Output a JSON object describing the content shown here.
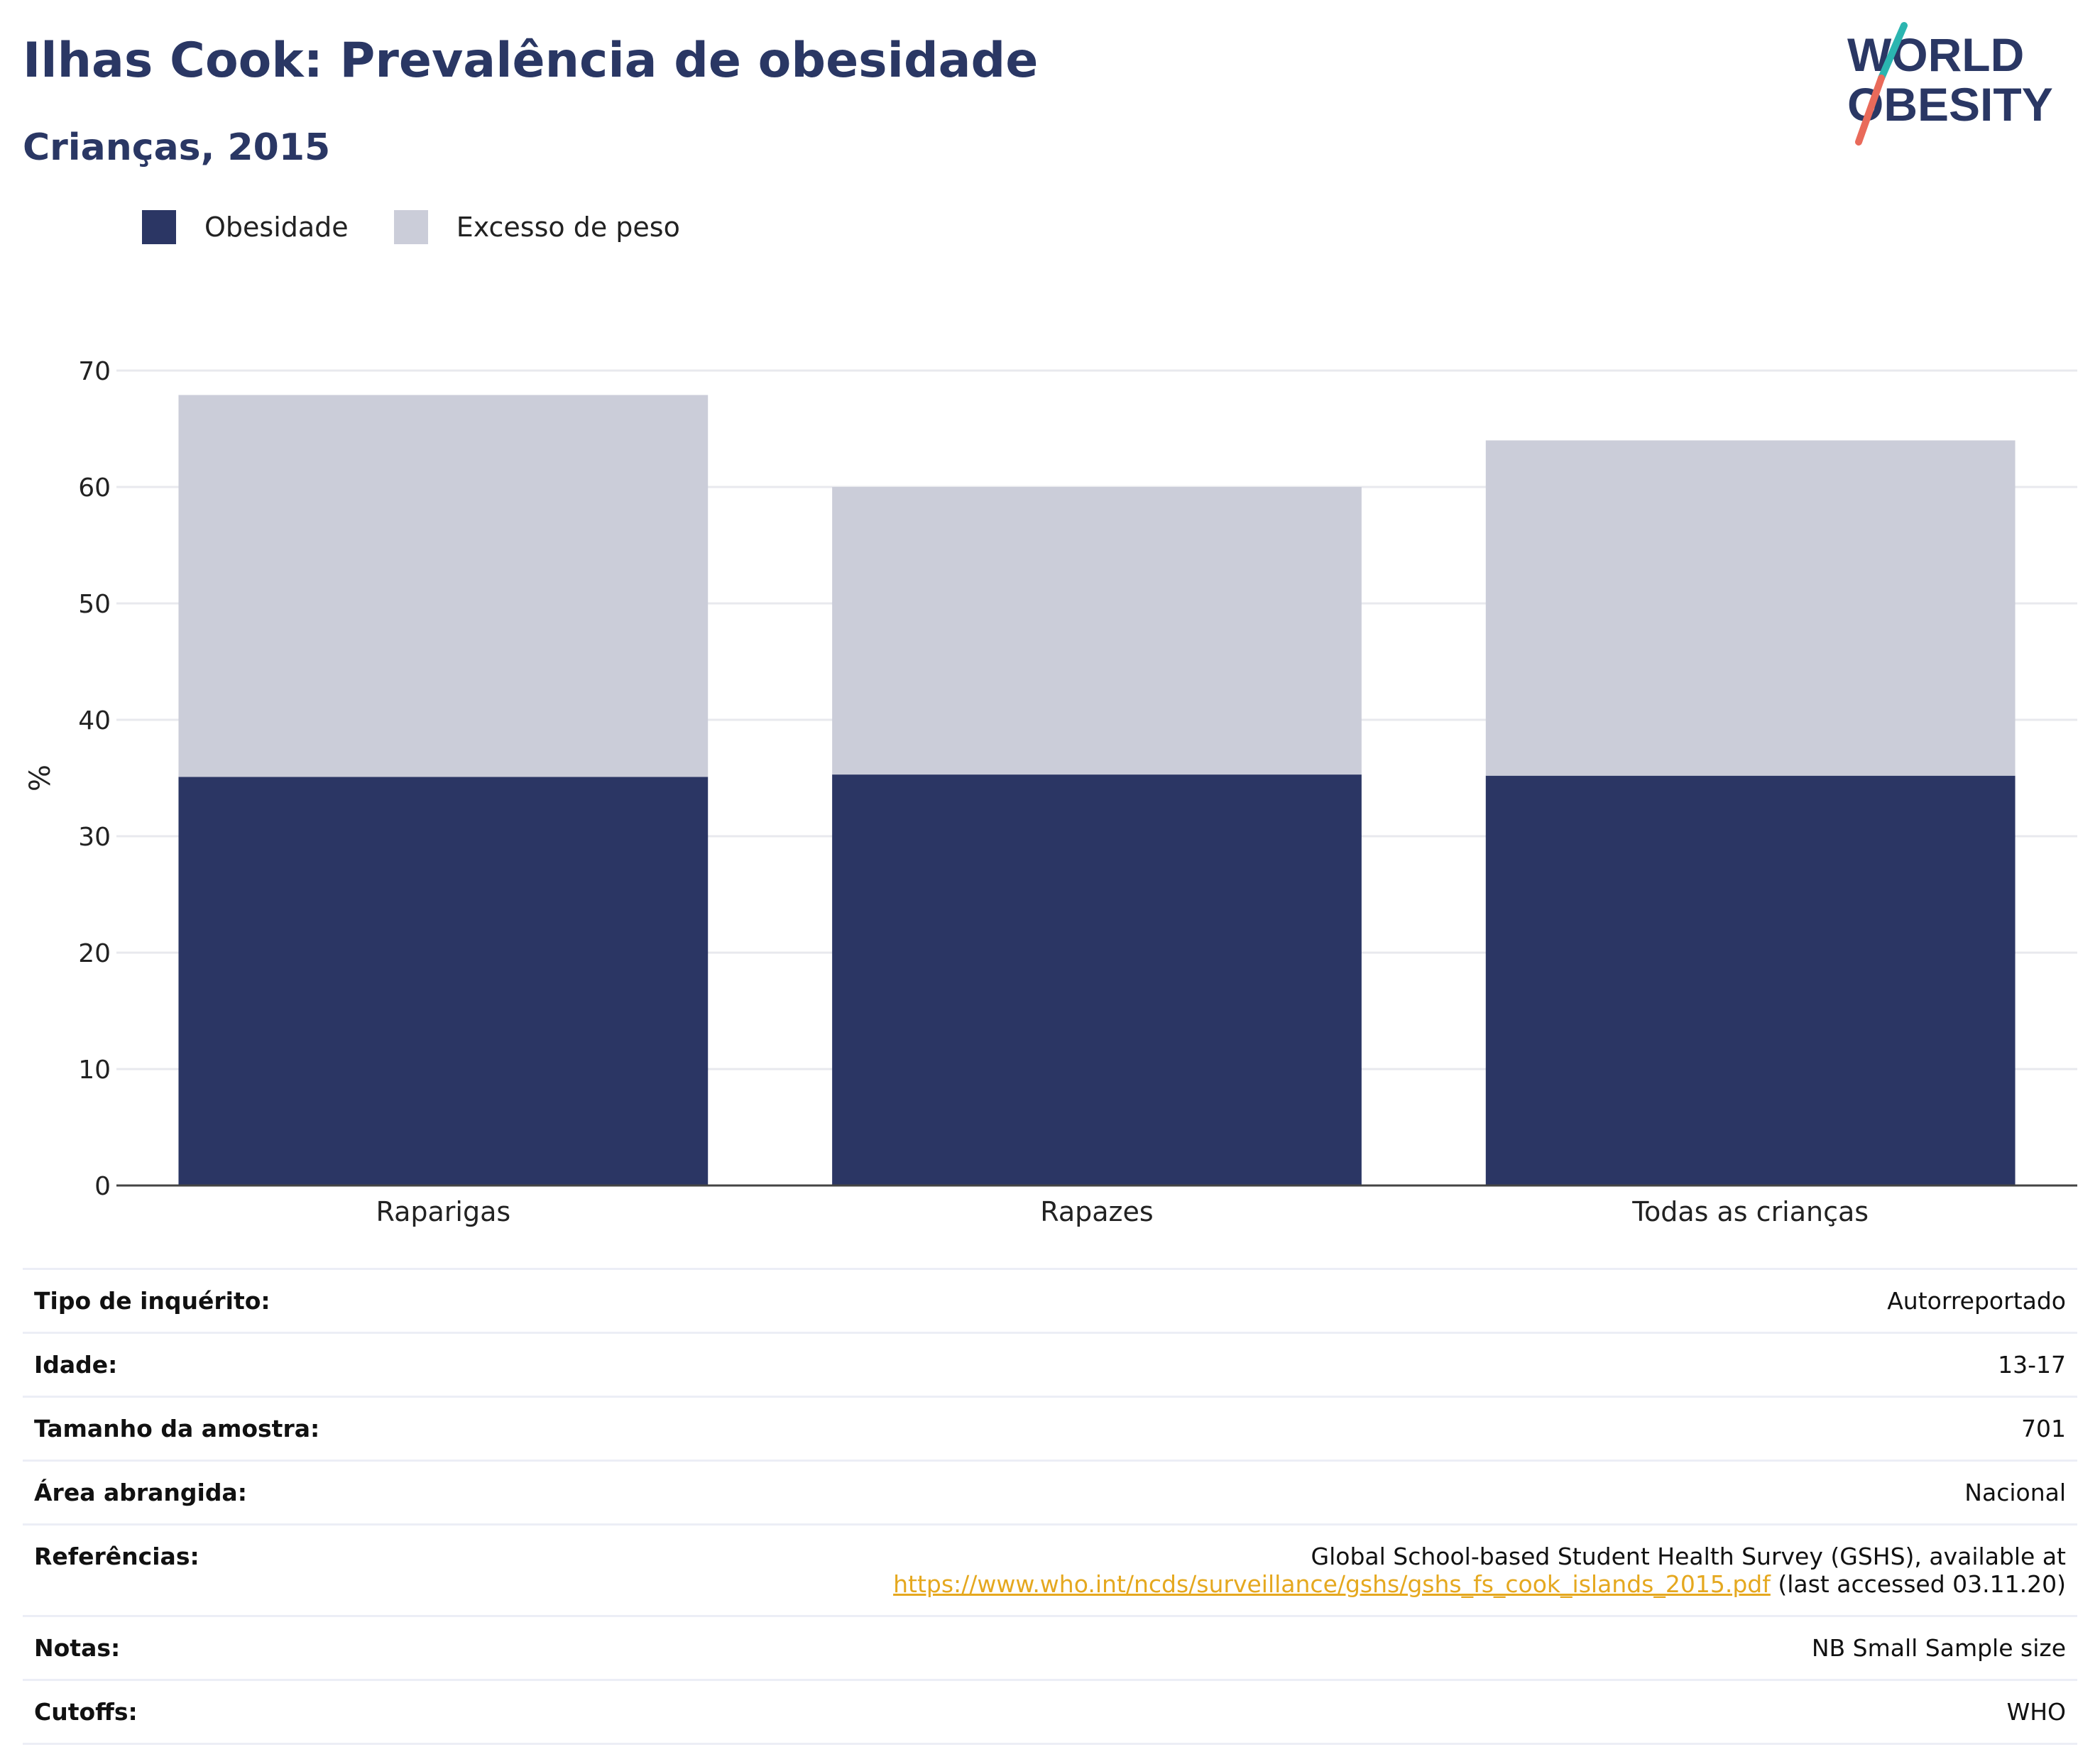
{
  "header": {
    "title": "Ilhas Cook: Prevalência de obesidade",
    "subtitle": "Crianças, 2015"
  },
  "logo": {
    "line1": "WORLD",
    "line2": "OBESITY"
  },
  "colors": {
    "obesity": "#2b3664",
    "overweight": "#cbcdd9",
    "title": "#2a3764",
    "link": "#e5a81f"
  },
  "legend": [
    {
      "label": "Obesidade",
      "color": "#2b3664"
    },
    {
      "label": "Excesso de peso",
      "color": "#cbcdd9"
    }
  ],
  "chart_data": {
    "type": "bar",
    "stacked": true,
    "categories": [
      "Raparigas",
      "Rapazes",
      "Todas as crianças"
    ],
    "series": [
      {
        "name": "Obesidade",
        "values": [
          35.1,
          35.3,
          35.2
        ]
      },
      {
        "name": "Excesso de peso",
        "values": [
          32.8,
          24.7,
          28.8
        ]
      }
    ],
    "ylabel": "%",
    "ylim": [
      0,
      70
    ],
    "yticks": [
      0,
      10,
      20,
      30,
      40,
      50,
      60,
      70
    ],
    "grid": true,
    "legend_position": "top-left"
  },
  "info": [
    {
      "key": "Tipo de inquérito:",
      "value": "Autorreportado"
    },
    {
      "key": "Idade:",
      "value": "13-17"
    },
    {
      "key": "Tamanho da amostra:",
      "value": "701"
    },
    {
      "key": "Área abrangida:",
      "value": "Nacional"
    },
    {
      "key": "Referências:",
      "value": "Global School-based Student Health Survey (GSHS), available at",
      "link": "https://www.who.int/ncds/surveillance/gshs/gshs_fs_cook_islands_2015.pdf",
      "suffix": " (last accessed 03.11.20)"
    },
    {
      "key": "Notas:",
      "value": "NB Small Sample size"
    },
    {
      "key": "Cutoffs:",
      "value": "WHO"
    }
  ]
}
